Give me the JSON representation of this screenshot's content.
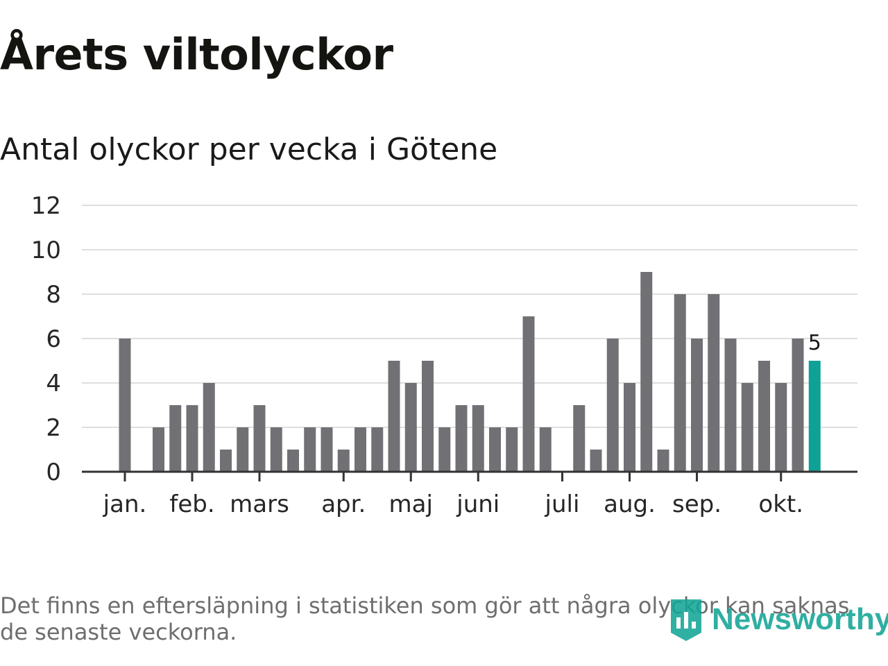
{
  "header": {
    "title": "Årets viltolyckor",
    "subtitle": "Antal olyckor per vecka i Götene"
  },
  "footnote": "Det finns en eftersläpning i statistiken som gör att några olyckor kan saknas de senaste veckorna.",
  "brand": {
    "name": "Newsworthy",
    "icon": "newsworthy-logo-icon",
    "color": "#13a596"
  },
  "colors": {
    "bar": "#707075",
    "highlight": "#0ea196",
    "grid": "#dedede",
    "axis": "#333333"
  },
  "chart_data": {
    "type": "bar",
    "title": "Antal olyckor per vecka i Götene",
    "xlabel": "",
    "ylabel": "",
    "ylim": [
      0,
      12
    ],
    "yticks": [
      0,
      2,
      4,
      6,
      8,
      10,
      12
    ],
    "grid": true,
    "weeks": [
      1,
      2,
      3,
      4,
      5,
      6,
      7,
      8,
      9,
      10,
      11,
      12,
      13,
      14,
      15,
      16,
      17,
      18,
      19,
      20,
      21,
      22,
      23,
      24,
      25,
      26,
      27,
      28,
      29,
      30,
      31,
      32,
      33,
      34,
      35,
      36,
      37,
      38,
      39,
      40,
      41,
      42
    ],
    "values": [
      6,
      0,
      2,
      3,
      3,
      4,
      1,
      2,
      3,
      2,
      1,
      2,
      2,
      1,
      2,
      2,
      5,
      4,
      5,
      2,
      3,
      3,
      2,
      2,
      7,
      2,
      0,
      3,
      1,
      6,
      4,
      9,
      1,
      8,
      6,
      8,
      6,
      4,
      5,
      4,
      6,
      5
    ],
    "highlight_index": 41,
    "highlight_label": "5",
    "month_ticks": [
      {
        "label": "jan.",
        "week": 1
      },
      {
        "label": "feb.",
        "week": 5
      },
      {
        "label": "mars",
        "week": 9
      },
      {
        "label": "apr.",
        "week": 14
      },
      {
        "label": "maj",
        "week": 18
      },
      {
        "label": "juni",
        "week": 22
      },
      {
        "label": "juli",
        "week": 27
      },
      {
        "label": "aug.",
        "week": 31
      },
      {
        "label": "sep.",
        "week": 35
      },
      {
        "label": "okt.",
        "week": 40
      }
    ]
  }
}
